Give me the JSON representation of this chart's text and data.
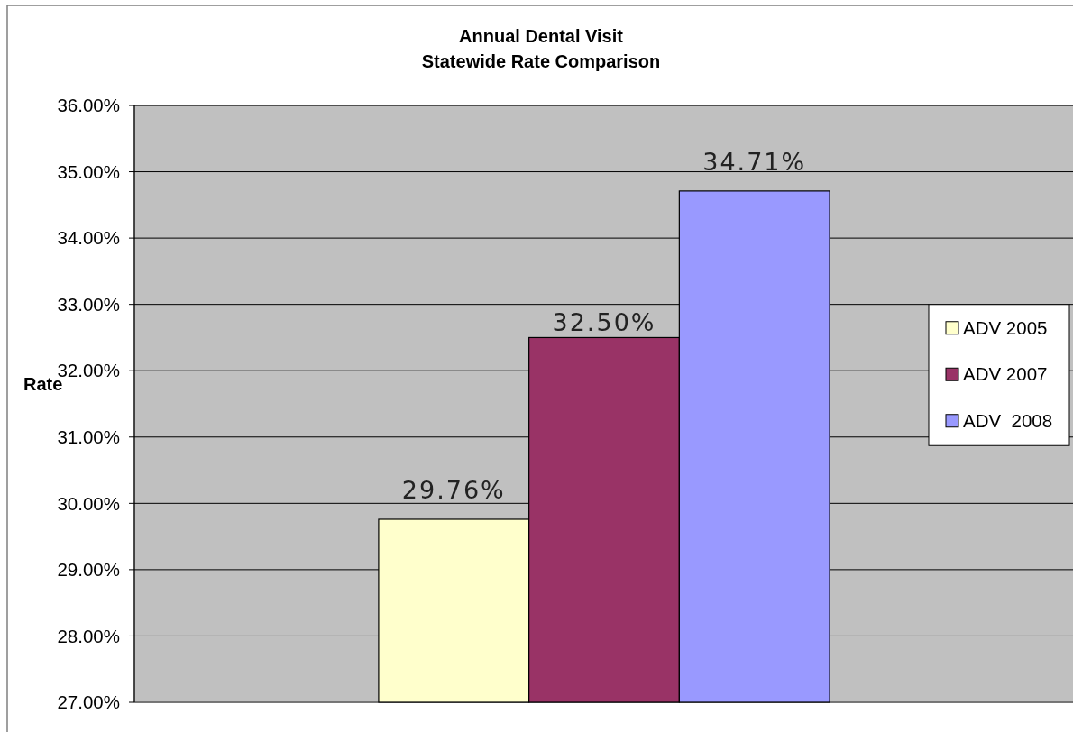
{
  "chart_data": {
    "type": "bar",
    "title": "Annual Dental Visit",
    "subtitle": "Statewide Rate Comparison",
    "ylabel": "Rate",
    "categories": [
      null
    ],
    "series": [
      {
        "name": "ADV 2005",
        "color": "#ffffcc",
        "values": [
          29.76
        ],
        "value_labels": [
          "29.76%"
        ]
      },
      {
        "name": "ADV 2007",
        "color": "#993366",
        "values": [
          32.5
        ],
        "value_labels": [
          "32.50%"
        ]
      },
      {
        "name": "ADV  2008",
        "color": "#9999ff",
        "values": [
          34.71
        ],
        "value_labels": [
          "34.71%"
        ]
      }
    ],
    "ylim": [
      27,
      36
    ],
    "yticks": [
      {
        "value": 27,
        "label": "27.00%"
      },
      {
        "value": 28,
        "label": "28.00%"
      },
      {
        "value": 29,
        "label": "29.00%"
      },
      {
        "value": 30,
        "label": "30.00%"
      },
      {
        "value": 31,
        "label": "31.00%"
      },
      {
        "value": 32,
        "label": "32.00%"
      },
      {
        "value": 33,
        "label": "33.00%"
      },
      {
        "value": 34,
        "label": "34.00%"
      },
      {
        "value": 35,
        "label": "35.00%"
      },
      {
        "value": 36,
        "label": "36.00%"
      }
    ],
    "grid": "y",
    "legend": "right",
    "tick_labels": "y"
  }
}
